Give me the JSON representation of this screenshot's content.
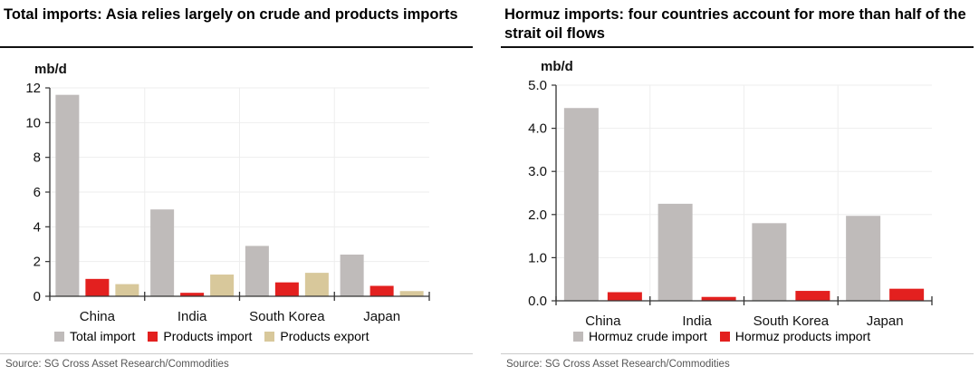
{
  "chart_data": [
    {
      "type": "bar",
      "title": "Total imports: Asia relies largely on crude and products imports",
      "ylabel": "mb/d",
      "ylim": [
        0,
        12
      ],
      "yticks": [
        "0",
        "2",
        "4",
        "6",
        "8",
        "10",
        "12"
      ],
      "categories": [
        "China",
        "India",
        "South Korea",
        "Japan"
      ],
      "series": [
        {
          "name": "Total import",
          "color": "#bfbbba",
          "values": [
            11.6,
            5.0,
            2.9,
            2.4
          ]
        },
        {
          "name": "Products import",
          "color": "#e3201f",
          "values": [
            1.0,
            0.2,
            0.8,
            0.6
          ]
        },
        {
          "name": "Products export",
          "color": "#d8c89b",
          "values": [
            0.7,
            1.25,
            1.35,
            0.3
          ]
        }
      ],
      "grid": true,
      "legend": "bottom",
      "source": "Source: SG Cross Asset Research/Commodities"
    },
    {
      "type": "bar",
      "title": "Hormuz imports: four countries account for more than half of the strait oil flows",
      "ylabel": "mb/d",
      "ylim": [
        0,
        5
      ],
      "yticks": [
        "0.0",
        "1.0",
        "2.0",
        "3.0",
        "4.0",
        "5.0"
      ],
      "categories": [
        "China",
        "India",
        "South Korea",
        "Japan"
      ],
      "series": [
        {
          "name": "Hormuz crude import",
          "color": "#bfbbba",
          "values": [
            4.47,
            2.25,
            1.8,
            1.97
          ]
        },
        {
          "name": "Hormuz products import",
          "color": "#e3201f",
          "values": [
            0.2,
            0.09,
            0.23,
            0.28
          ]
        }
      ],
      "grid": true,
      "legend": "bottom",
      "source": "Source: SG Cross Asset Research/Commodities"
    }
  ]
}
